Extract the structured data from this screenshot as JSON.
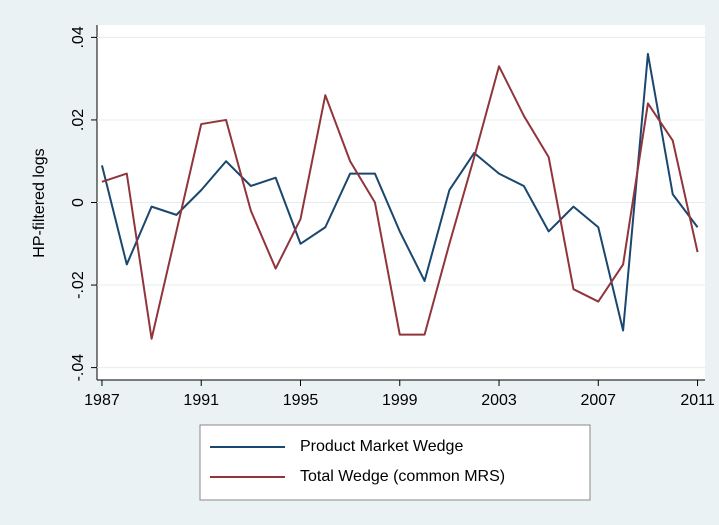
{
  "chart_data": {
    "type": "line",
    "ylabel": "HP-filtered logs",
    "x": [
      1987,
      1988,
      1989,
      1990,
      1991,
      1992,
      1993,
      1994,
      1995,
      1996,
      1997,
      1998,
      1999,
      2000,
      2001,
      2002,
      2003,
      2004,
      2005,
      2006,
      2007,
      2008,
      2009,
      2010,
      2011
    ],
    "series": [
      {
        "name": "Product Market Wedge",
        "color": "#1a476f",
        "values": [
          0.009,
          -0.015,
          -0.001,
          -0.003,
          0.003,
          0.01,
          0.004,
          0.006,
          -0.01,
          -0.006,
          0.007,
          0.007,
          -0.007,
          -0.019,
          0.003,
          0.012,
          0.007,
          0.004,
          -0.007,
          -0.001,
          -0.006,
          -0.031,
          0.036,
          0.002,
          -0.006
        ]
      },
      {
        "name": "Total Wedge (common MRS)",
        "color": "#90353b",
        "values": [
          0.005,
          0.007,
          -0.033,
          -0.007,
          0.019,
          0.02,
          -0.002,
          -0.016,
          -0.004,
          0.026,
          0.01,
          0.0,
          -0.032,
          -0.032,
          -0.01,
          0.011,
          0.033,
          0.021,
          0.011,
          -0.021,
          -0.024,
          -0.015,
          0.024,
          0.015,
          -0.012
        ]
      }
    ],
    "xlim": [
      1986.8,
      2011.3
    ],
    "xticks": [
      1987,
      1991,
      1995,
      1999,
      2003,
      2007,
      2011
    ],
    "ylim": [
      -0.043,
      0.043
    ],
    "yticks": [
      {
        "value": 0.04,
        "label": ".04"
      },
      {
        "value": 0.02,
        "label": ".02"
      },
      0,
      {
        "value": -0.02,
        "label": "-.02"
      },
      {
        "value": -0.04,
        "label": "-.04"
      }
    ],
    "grid": true
  }
}
